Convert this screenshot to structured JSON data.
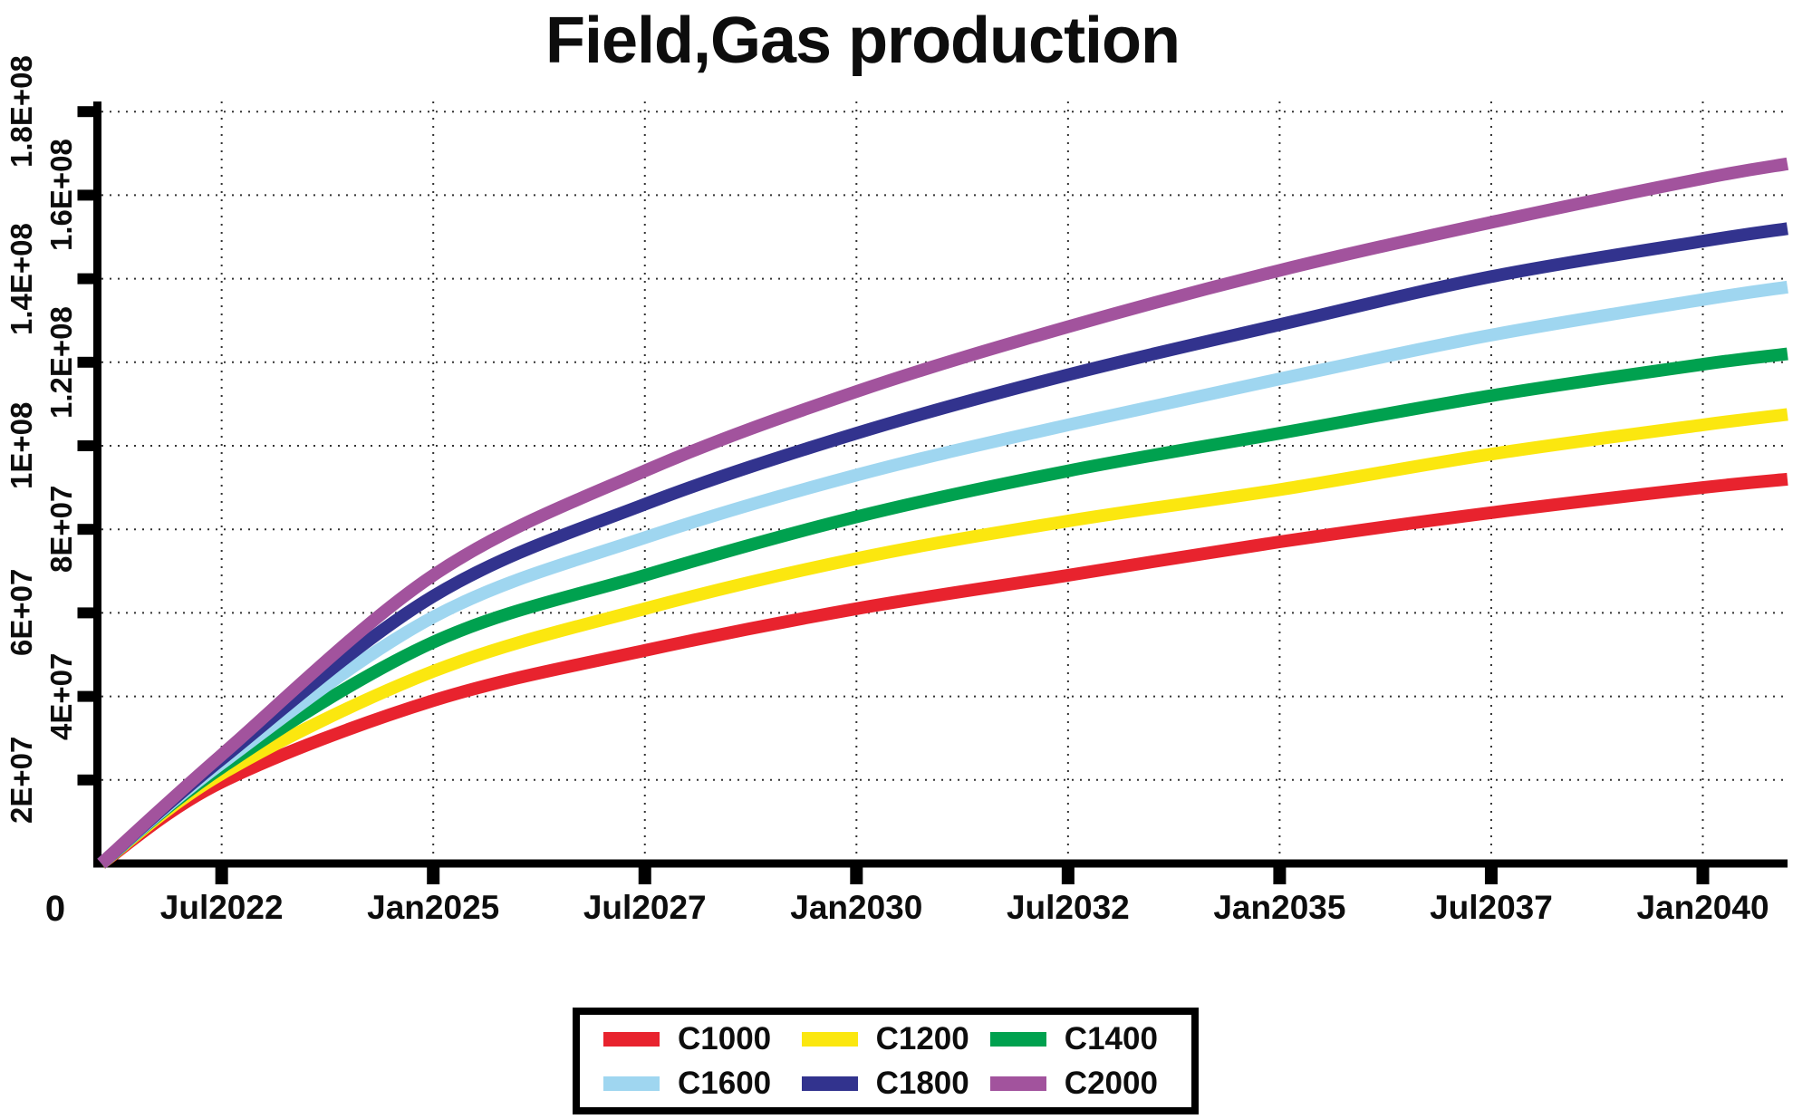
{
  "title": "Field,Gas production",
  "chart_data": {
    "type": "line",
    "title": "Field,Gas production",
    "grid": "dotted",
    "grid_color": "#333333",
    "axis_color": "#000000",
    "legend_position": "bottom-center",
    "x_axis": {
      "origin_label": "0",
      "tick_labels": [
        "Jul2022",
        "Jan2025",
        "Jul2027",
        "Jan2030",
        "Jul2032",
        "Jan2035",
        "Jul2037",
        "Jan2040"
      ],
      "first_tick_years_from_start": 1.42,
      "tick_step_years": 2.5,
      "range_years": [
        0,
        19.92
      ]
    },
    "y_axis": {
      "tick_labels": [
        "2E+07",
        "4E+07",
        "6E+07",
        "8E+07",
        "1E+08",
        "1.2E+08",
        "1.4E+08",
        "1.6E+08",
        "1.8E+08"
      ],
      "tick_values": [
        20000000,
        40000000,
        60000000,
        80000000,
        100000000,
        120000000,
        140000000,
        160000000,
        180000000
      ],
      "range": [
        0,
        186000000
      ]
    },
    "x_years_samples": [
      0,
      1.42,
      3.92,
      6.42,
      8.92,
      11.42,
      13.92,
      16.42,
      18.92,
      19.92
    ],
    "series": [
      {
        "name": "C1000",
        "color": "#e8232e",
        "values": [
          0,
          19500000,
          39000000,
          51000000,
          61000000,
          69000000,
          77000000,
          84000000,
          90000000,
          92000000
        ]
      },
      {
        "name": "C1200",
        "color": "#fbe70f",
        "values": [
          0,
          21500000,
          46000000,
          61000000,
          73000000,
          82000000,
          89500000,
          98000000,
          105000000,
          107500000
        ]
      },
      {
        "name": "C1400",
        "color": "#00a14f",
        "values": [
          0,
          23000000,
          53000000,
          69000000,
          83000000,
          94000000,
          103000000,
          112000000,
          119500000,
          122000000
        ]
      },
      {
        "name": "C1600",
        "color": "#9fd6f0",
        "values": [
          0,
          24000000,
          59000000,
          78000000,
          93000000,
          105000000,
          116000000,
          126500000,
          135000000,
          138000000
        ]
      },
      {
        "name": "C1800",
        "color": "#32338e",
        "values": [
          0,
          25000000,
          64000000,
          86000000,
          103000000,
          117000000,
          129000000,
          140500000,
          149000000,
          152000000
        ]
      },
      {
        "name": "C2000",
        "color": "#a2539d",
        "values": [
          0,
          26000000,
          69000000,
          94000000,
          113000000,
          128500000,
          142000000,
          153500000,
          164000000,
          167500000
        ]
      }
    ]
  }
}
